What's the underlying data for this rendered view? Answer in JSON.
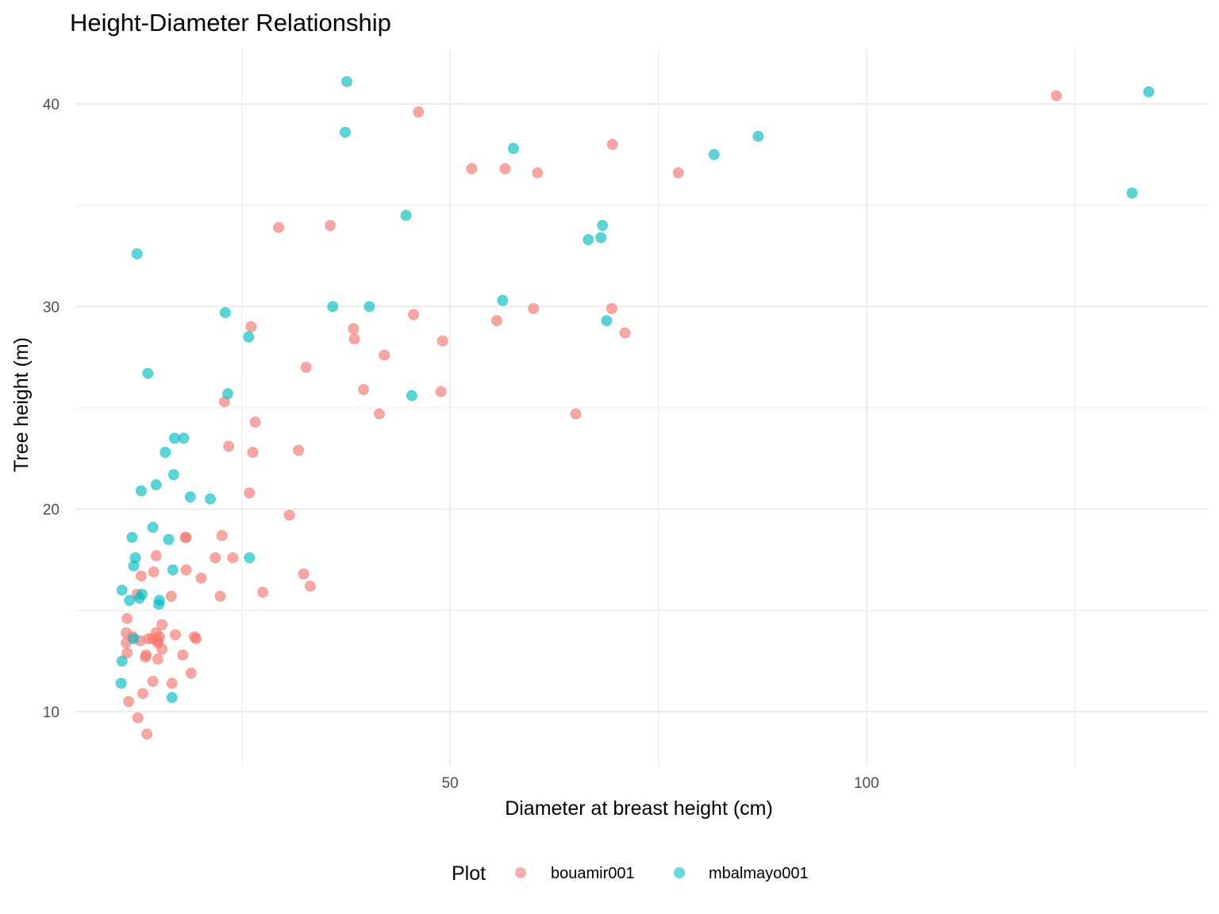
{
  "chart_data": {
    "type": "scatter",
    "title": "Height-Diameter Relationship",
    "xlabel": "Diameter at breast height (cm)",
    "ylabel": "Tree height (m)",
    "xlim": [
      5,
      141
    ],
    "ylim": [
      7.3,
      42.7
    ],
    "x_ticks": [
      50,
      100
    ],
    "x_tick_labels": [
      "50",
      "100"
    ],
    "x_minor_ticks": [
      25,
      75,
      125
    ],
    "y_ticks": [
      10,
      20,
      30,
      40
    ],
    "y_tick_labels": [
      "10",
      "20",
      "30",
      "40"
    ],
    "y_minor_ticks": [
      15,
      25,
      35
    ],
    "grid": true,
    "legend": {
      "title": "Plot",
      "position": "bottom"
    },
    "series": [
      {
        "name": "bouamir001",
        "color": "#F8766D",
        "points": [
          [
            46.2,
            39.6
          ],
          [
            52.6,
            36.8
          ],
          [
            56.6,
            36.8
          ],
          [
            60.5,
            36.6
          ],
          [
            69.5,
            38.0
          ],
          [
            77.4,
            36.6
          ],
          [
            122.8,
            40.4
          ],
          [
            29.4,
            33.9
          ],
          [
            35.6,
            34.0
          ],
          [
            45.6,
            29.6
          ],
          [
            55.6,
            29.3
          ],
          [
            60.0,
            29.9
          ],
          [
            69.4,
            29.9
          ],
          [
            38.4,
            28.9
          ],
          [
            38.5,
            28.4
          ],
          [
            49.1,
            28.3
          ],
          [
            71.0,
            28.7
          ],
          [
            26.1,
            29.0
          ],
          [
            42.1,
            27.6
          ],
          [
            32.7,
            27.0
          ],
          [
            39.6,
            25.9
          ],
          [
            41.5,
            24.7
          ],
          [
            48.9,
            25.8
          ],
          [
            65.1,
            24.7
          ],
          [
            22.9,
            25.3
          ],
          [
            26.6,
            24.3
          ],
          [
            23.4,
            23.1
          ],
          [
            26.3,
            22.8
          ],
          [
            31.8,
            22.9
          ],
          [
            25.9,
            20.8
          ],
          [
            30.7,
            19.7
          ],
          [
            18.3,
            18.6
          ],
          [
            18.2,
            18.6
          ],
          [
            22.6,
            18.7
          ],
          [
            21.8,
            17.6
          ],
          [
            23.9,
            17.6
          ],
          [
            14.7,
            17.7
          ],
          [
            14.4,
            16.9
          ],
          [
            12.9,
            16.7
          ],
          [
            18.3,
            17.0
          ],
          [
            20.1,
            16.6
          ],
          [
            32.4,
            16.8
          ],
          [
            33.2,
            16.2
          ],
          [
            27.5,
            15.9
          ],
          [
            22.4,
            15.7
          ],
          [
            16.5,
            15.7
          ],
          [
            12.4,
            15.8
          ],
          [
            11.2,
            14.6
          ],
          [
            15.4,
            14.3
          ],
          [
            11.1,
            13.9
          ],
          [
            14.7,
            13.9
          ],
          [
            11.9,
            13.7
          ],
          [
            15.1,
            13.7
          ],
          [
            13.8,
            13.6
          ],
          [
            14.3,
            13.6
          ],
          [
            14.9,
            13.5
          ],
          [
            14.9,
            13.4
          ],
          [
            12.8,
            13.5
          ],
          [
            17.0,
            13.8
          ],
          [
            19.3,
            13.7
          ],
          [
            19.5,
            13.6
          ],
          [
            11.1,
            13.4
          ],
          [
            15.4,
            13.1
          ],
          [
            11.2,
            12.9
          ],
          [
            13.5,
            12.8
          ],
          [
            13.4,
            12.7
          ],
          [
            14.9,
            12.6
          ],
          [
            17.9,
            12.8
          ],
          [
            18.9,
            11.9
          ],
          [
            14.3,
            11.5
          ],
          [
            16.6,
            11.4
          ],
          [
            13.1,
            10.9
          ],
          [
            11.4,
            10.5
          ],
          [
            12.5,
            9.7
          ],
          [
            13.6,
            8.9
          ]
        ]
      },
      {
        "name": "mbalmayo001",
        "color": "#00BFC4",
        "points": [
          [
            37.6,
            41.1
          ],
          [
            37.4,
            38.6
          ],
          [
            57.6,
            37.8
          ],
          [
            81.7,
            37.5
          ],
          [
            87.0,
            38.4
          ],
          [
            133.9,
            40.6
          ],
          [
            131.9,
            35.6
          ],
          [
            44.7,
            34.5
          ],
          [
            68.3,
            34.0
          ],
          [
            68.1,
            33.4
          ],
          [
            66.6,
            33.3
          ],
          [
            12.4,
            32.6
          ],
          [
            35.9,
            30.0
          ],
          [
            40.3,
            30.0
          ],
          [
            56.3,
            30.3
          ],
          [
            68.8,
            29.3
          ],
          [
            23.0,
            29.7
          ],
          [
            25.8,
            28.5
          ],
          [
            13.7,
            26.7
          ],
          [
            23.3,
            25.7
          ],
          [
            45.4,
            25.6
          ],
          [
            16.9,
            23.5
          ],
          [
            18.0,
            23.5
          ],
          [
            15.8,
            22.8
          ],
          [
            12.9,
            20.9
          ],
          [
            14.7,
            21.2
          ],
          [
            16.8,
            21.7
          ],
          [
            18.8,
            20.6
          ],
          [
            21.2,
            20.5
          ],
          [
            11.8,
            18.6
          ],
          [
            14.3,
            19.1
          ],
          [
            16.2,
            18.5
          ],
          [
            12.2,
            17.6
          ],
          [
            12.0,
            17.2
          ],
          [
            16.7,
            17.0
          ],
          [
            25.9,
            17.6
          ],
          [
            10.6,
            16.0
          ],
          [
            11.5,
            15.5
          ],
          [
            13.0,
            15.8
          ],
          [
            12.7,
            15.6
          ],
          [
            15.1,
            15.5
          ],
          [
            15.0,
            15.3
          ],
          [
            12.0,
            13.6
          ],
          [
            10.6,
            12.5
          ],
          [
            10.5,
            11.4
          ],
          [
            16.6,
            10.7
          ]
        ]
      }
    ]
  }
}
